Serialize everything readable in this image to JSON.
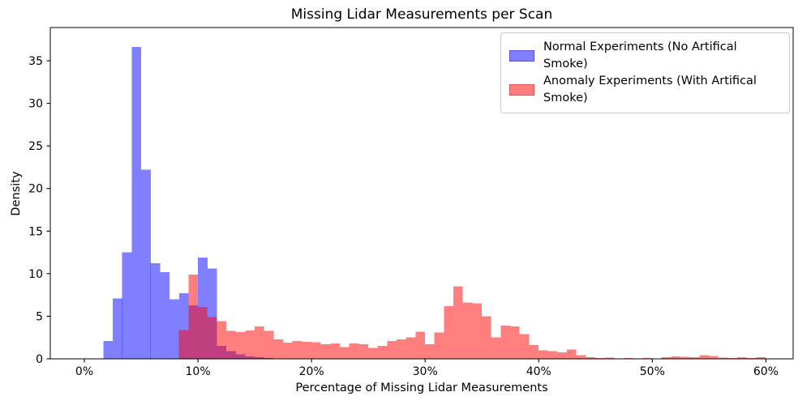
{
  "chart_data": {
    "type": "bar",
    "subtype": "overlapping-density-histograms",
    "title": "Missing Lidar Measurements per Scan",
    "xlabel": "Percentage of Missing Lidar Measurements",
    "ylabel": "Density",
    "xlim": [
      -3.0,
      62.4
    ],
    "ylim": [
      0,
      38.9
    ],
    "grid": false,
    "legend_position": "upper right",
    "x_tick_values": [
      0,
      10,
      20,
      30,
      40,
      50,
      60
    ],
    "x_tick_labels": [
      "0%",
      "10%",
      "20%",
      "30%",
      "40%",
      "50%",
      "60%"
    ],
    "y_tick_values": [
      0,
      5,
      10,
      15,
      20,
      25,
      30,
      35
    ],
    "y_tick_labels": [
      "0",
      "5",
      "10",
      "15",
      "20",
      "25",
      "30",
      "35"
    ],
    "bin_width_pct": 0.833,
    "series": [
      {
        "name": "Normal Experiments (No Artifical Smoke)",
        "color": "#0000ff",
        "fill_opacity": 0.5,
        "rendered_color_on_white": "#7f7fff",
        "first_bin_start_pct": 1.67,
        "densities": [
          2.1,
          7.1,
          12.5,
          36.6,
          22.2,
          11.2,
          10.2,
          7.0,
          7.7,
          6.3,
          11.9,
          10.6,
          1.5,
          0.9,
          0.5,
          0.3,
          0.2,
          0.1
        ]
      },
      {
        "name": "Anomaly Experiments (With Artifical Smoke)",
        "color": "#ff0000",
        "fill_opacity": 0.5,
        "rendered_color_on_white": "#ff7f7f",
        "first_bin_start_pct": 8.33,
        "densities": [
          3.4,
          9.9,
          6.1,
          4.9,
          4.4,
          3.3,
          3.15,
          3.35,
          3.8,
          3.3,
          2.3,
          1.9,
          2.1,
          2.0,
          1.95,
          1.7,
          1.8,
          1.4,
          1.8,
          1.7,
          1.3,
          1.5,
          2.1,
          2.3,
          2.5,
          3.2,
          1.7,
          3.1,
          6.2,
          8.5,
          6.6,
          6.5,
          5.0,
          2.5,
          3.9,
          3.8,
          2.9,
          1.6,
          1.0,
          0.9,
          0.75,
          1.1,
          0.45,
          0.2,
          0.1,
          0.15,
          0.05,
          0.1,
          0.05,
          0.08,
          0.05,
          0.2,
          0.3,
          0.25,
          0.2,
          0.45,
          0.35,
          0.15,
          0.1,
          0.2,
          0.1,
          0.2
        ]
      }
    ],
    "overlap_rendered_color": "#bf4080",
    "axes_color": "#000000",
    "background_color": "#ffffff"
  },
  "legend": {
    "items": [
      {
        "label": "Normal Experiments (No Artifical Smoke)",
        "swatch": "blue-swatch"
      },
      {
        "label": "Anomaly Experiments (With Artifical Smoke)",
        "swatch": "red-swatch"
      }
    ]
  }
}
